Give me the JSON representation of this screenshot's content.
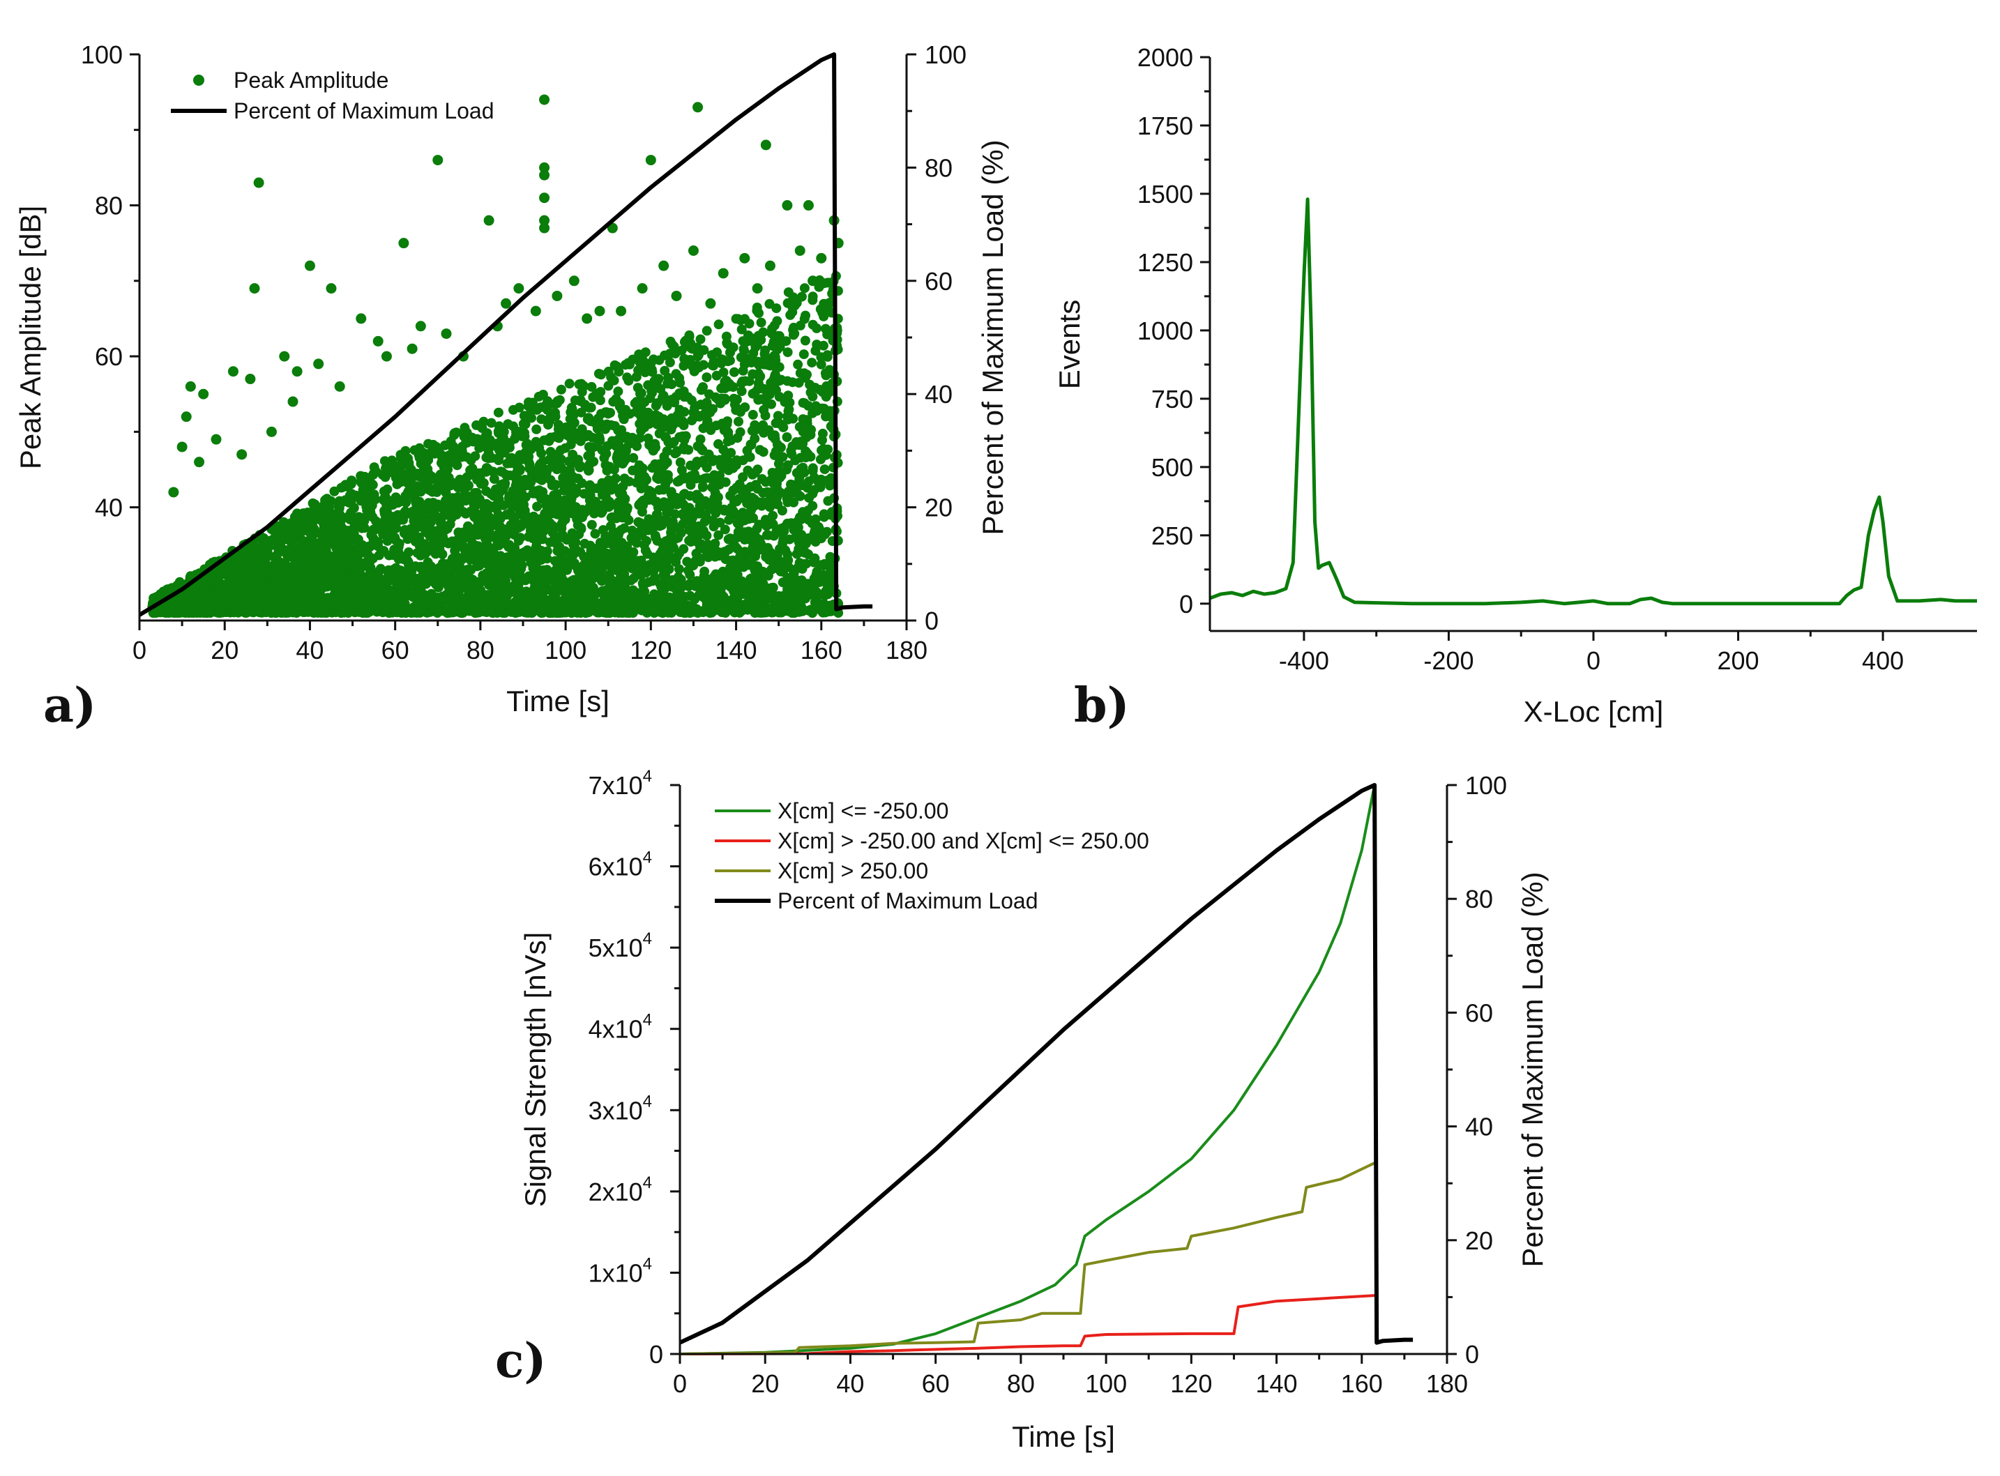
{
  "chart_data": [
    {
      "panel": "a)",
      "type": "scatter",
      "xlabel": "Time [s]",
      "ylabel": "Peak Amplitude [dB]",
      "y2label": "Percent of Maximum Load (%)",
      "xlim": [
        0,
        180
      ],
      "ylim": [
        25,
        100
      ],
      "y2lim": [
        0,
        100
      ],
      "xticks": [
        0,
        20,
        40,
        60,
        80,
        100,
        120,
        140,
        160,
        180
      ],
      "yticks": [
        40,
        60,
        80,
        100
      ],
      "y2ticks": [
        0,
        20,
        40,
        60,
        80,
        100
      ],
      "legend_position": "top-left",
      "colors": {
        "scatter": "#0a7d0a",
        "load": "#000000"
      },
      "series": [
        {
          "name": "Peak Amplitude",
          "kind": "scatter",
          "points": [
            [
              28,
              83
            ],
            [
              27,
              69
            ],
            [
              40,
              72
            ],
            [
              45,
              69
            ],
            [
              62,
              75
            ],
            [
              70,
              86
            ],
            [
              82,
              78
            ],
            [
              95,
              94
            ],
            [
              95,
              85
            ],
            [
              95,
              84
            ],
            [
              95,
              81
            ],
            [
              95,
              78
            ],
            [
              95,
              77
            ],
            [
              111,
              77
            ],
            [
              120,
              86
            ],
            [
              131,
              93
            ],
            [
              147,
              88
            ],
            [
              152,
              80
            ],
            [
              157,
              80
            ],
            [
              163,
              78
            ],
            [
              164,
              75
            ],
            [
              12,
              56
            ],
            [
              11,
              52
            ],
            [
              15,
              55
            ],
            [
              22,
              58
            ],
            [
              26,
              57
            ],
            [
              34,
              60
            ],
            [
              37,
              58
            ],
            [
              42,
              59
            ],
            [
              52,
              65
            ],
            [
              56,
              62
            ],
            [
              66,
              64
            ],
            [
              72,
              63
            ],
            [
              86,
              67
            ],
            [
              89,
              69
            ],
            [
              102,
              70
            ],
            [
              108,
              66
            ],
            [
              118,
              69
            ],
            [
              123,
              72
            ],
            [
              130,
              74
            ],
            [
              137,
              71
            ],
            [
              142,
              73
            ],
            [
              148,
              72
            ],
            [
              155,
              74
            ],
            [
              160,
              73
            ],
            [
              8,
              42
            ],
            [
              10,
              48
            ],
            [
              14,
              46
            ],
            [
              18,
              49
            ],
            [
              24,
              47
            ],
            [
              31,
              50
            ],
            [
              36,
              54
            ],
            [
              47,
              56
            ],
            [
              58,
              60
            ],
            [
              64,
              61
            ],
            [
              76,
              60
            ],
            [
              84,
              64
            ],
            [
              93,
              66
            ],
            [
              98,
              68
            ],
            [
              105,
              65
            ],
            [
              113,
              66
            ],
            [
              126,
              68
            ],
            [
              134,
              67
            ],
            [
              145,
              69
            ],
            [
              158,
              70
            ]
          ]
        },
        {
          "name": "Percent of Maximum Load",
          "kind": "line",
          "axis": "y2",
          "x": [
            0,
            10,
            20,
            30,
            40,
            50,
            60,
            70,
            80,
            90,
            100,
            110,
            120,
            130,
            140,
            150,
            160,
            163,
            163.5,
            165,
            170,
            172
          ],
          "y": [
            1,
            5.5,
            11,
            16.5,
            23,
            29.5,
            36,
            43,
            50,
            57,
            63.5,
            70,
            76.5,
            82.5,
            88.5,
            94,
            99,
            100,
            2,
            2.3,
            2.5,
            2.5
          ]
        }
      ]
    },
    {
      "panel": "b)",
      "type": "line",
      "xlabel": "X-Loc [cm]",
      "ylabel": "Events",
      "xlim": [
        -530,
        530
      ],
      "ylim": [
        -100,
        2000
      ],
      "xticks": [
        -400,
        -200,
        0,
        200,
        400
      ],
      "yticks": [
        0,
        250,
        500,
        750,
        1000,
        1250,
        1500,
        1750,
        2000
      ],
      "colors": {
        "line": "#0a7d0a"
      },
      "series": [
        {
          "name": "Events",
          "x": [
            -530,
            -515,
            -500,
            -485,
            -470,
            -455,
            -440,
            -425,
            -415,
            -410,
            -400,
            -395,
            -390,
            -385,
            -380,
            -375,
            -365,
            -355,
            -345,
            -330,
            -300,
            -250,
            -200,
            -150,
            -100,
            -70,
            -40,
            -20,
            0,
            20,
            50,
            65,
            80,
            95,
            110,
            150,
            200,
            250,
            300,
            340,
            350,
            360,
            370,
            380,
            388,
            395,
            400,
            408,
            420,
            450,
            480,
            500,
            530
          ],
          "y": [
            20,
            35,
            40,
            30,
            45,
            35,
            40,
            55,
            150,
            500,
            1200,
            1480,
            1000,
            300,
            130,
            140,
            150,
            90,
            25,
            5,
            3,
            0,
            0,
            0,
            5,
            10,
            0,
            5,
            10,
            0,
            0,
            15,
            20,
            5,
            0,
            0,
            0,
            0,
            0,
            0,
            30,
            50,
            60,
            250,
            340,
            390,
            300,
            100,
            10,
            10,
            15,
            10,
            10
          ]
        }
      ]
    },
    {
      "panel": "c)",
      "type": "line",
      "xlabel": "Time [s]",
      "ylabel": "Signal Strength [nVs]",
      "y2label": "Percent of Maximum Load (%)",
      "xlim": [
        0,
        180
      ],
      "ylim": [
        0,
        70000
      ],
      "y2lim": [
        0,
        100
      ],
      "xticks": [
        0,
        20,
        40,
        60,
        80,
        100,
        120,
        140,
        160,
        180
      ],
      "yticks": [
        0,
        10000,
        20000,
        30000,
        40000,
        50000,
        60000,
        70000
      ],
      "ytick_labels": [
        {
          "mant": "0",
          "exp": ""
        },
        {
          "mant": "1x10",
          "exp": "4"
        },
        {
          "mant": "2x10",
          "exp": "4"
        },
        {
          "mant": "3x10",
          "exp": "4"
        },
        {
          "mant": "4x10",
          "exp": "4"
        },
        {
          "mant": "5x10",
          "exp": "4"
        },
        {
          "mant": "6x10",
          "exp": "4"
        },
        {
          "mant": "7x10",
          "exp": "4"
        }
      ],
      "y2ticks": [
        0,
        20,
        40,
        60,
        80,
        100
      ],
      "legend_position": "top-left",
      "series": [
        {
          "name": "X[cm] <= -250.00",
          "color": "#1a8c1a",
          "x": [
            0,
            20,
            40,
            50,
            60,
            70,
            80,
            88,
            93,
            95,
            100,
            110,
            120,
            130,
            140,
            150,
            155,
            160,
            163
          ],
          "y": [
            0,
            200,
            700,
            1200,
            2500,
            4500,
            6500,
            8500,
            11000,
            14500,
            16500,
            20000,
            24000,
            30000,
            38000,
            47000,
            53000,
            62000,
            70000
          ]
        },
        {
          "name": "X[cm] > -250.00 and X[cm] <= 250.00",
          "color": "#e8201a",
          "x": [
            0,
            30,
            40,
            50,
            55,
            70,
            80,
            90,
            94,
            95,
            100,
            120,
            130,
            131,
            140,
            150,
            163
          ],
          "y": [
            0,
            50,
            300,
            400,
            500,
            700,
            900,
            1000,
            1000,
            2200,
            2400,
            2500,
            2500,
            5800,
            6500,
            6800,
            7200
          ]
        },
        {
          "name": "X[cm] > 250.00",
          "color": "#808a1a",
          "x": [
            0,
            27,
            28,
            40,
            50,
            60,
            69,
            70,
            80,
            85,
            94,
            95,
            100,
            110,
            119,
            120,
            130,
            140,
            146,
            147,
            155,
            163
          ],
          "y": [
            0,
            200,
            800,
            1000,
            1300,
            1400,
            1500,
            3800,
            4200,
            5000,
            5000,
            11000,
            11500,
            12500,
            13000,
            14500,
            15500,
            16800,
            17500,
            20500,
            21500,
            23500
          ]
        },
        {
          "name": "Percent of Maximum Load",
          "color": "#000000",
          "axis": "y2",
          "x": [
            0,
            10,
            20,
            30,
            40,
            50,
            60,
            70,
            80,
            90,
            100,
            110,
            120,
            130,
            140,
            150,
            160,
            163,
            163.5,
            165,
            170,
            172
          ],
          "y": [
            2,
            5.5,
            11,
            16.5,
            23,
            29.5,
            36,
            43,
            50,
            57,
            63.5,
            70,
            76.5,
            82.5,
            88.5,
            94,
            99,
            100,
            2,
            2.3,
            2.5,
            2.5
          ]
        }
      ]
    }
  ]
}
